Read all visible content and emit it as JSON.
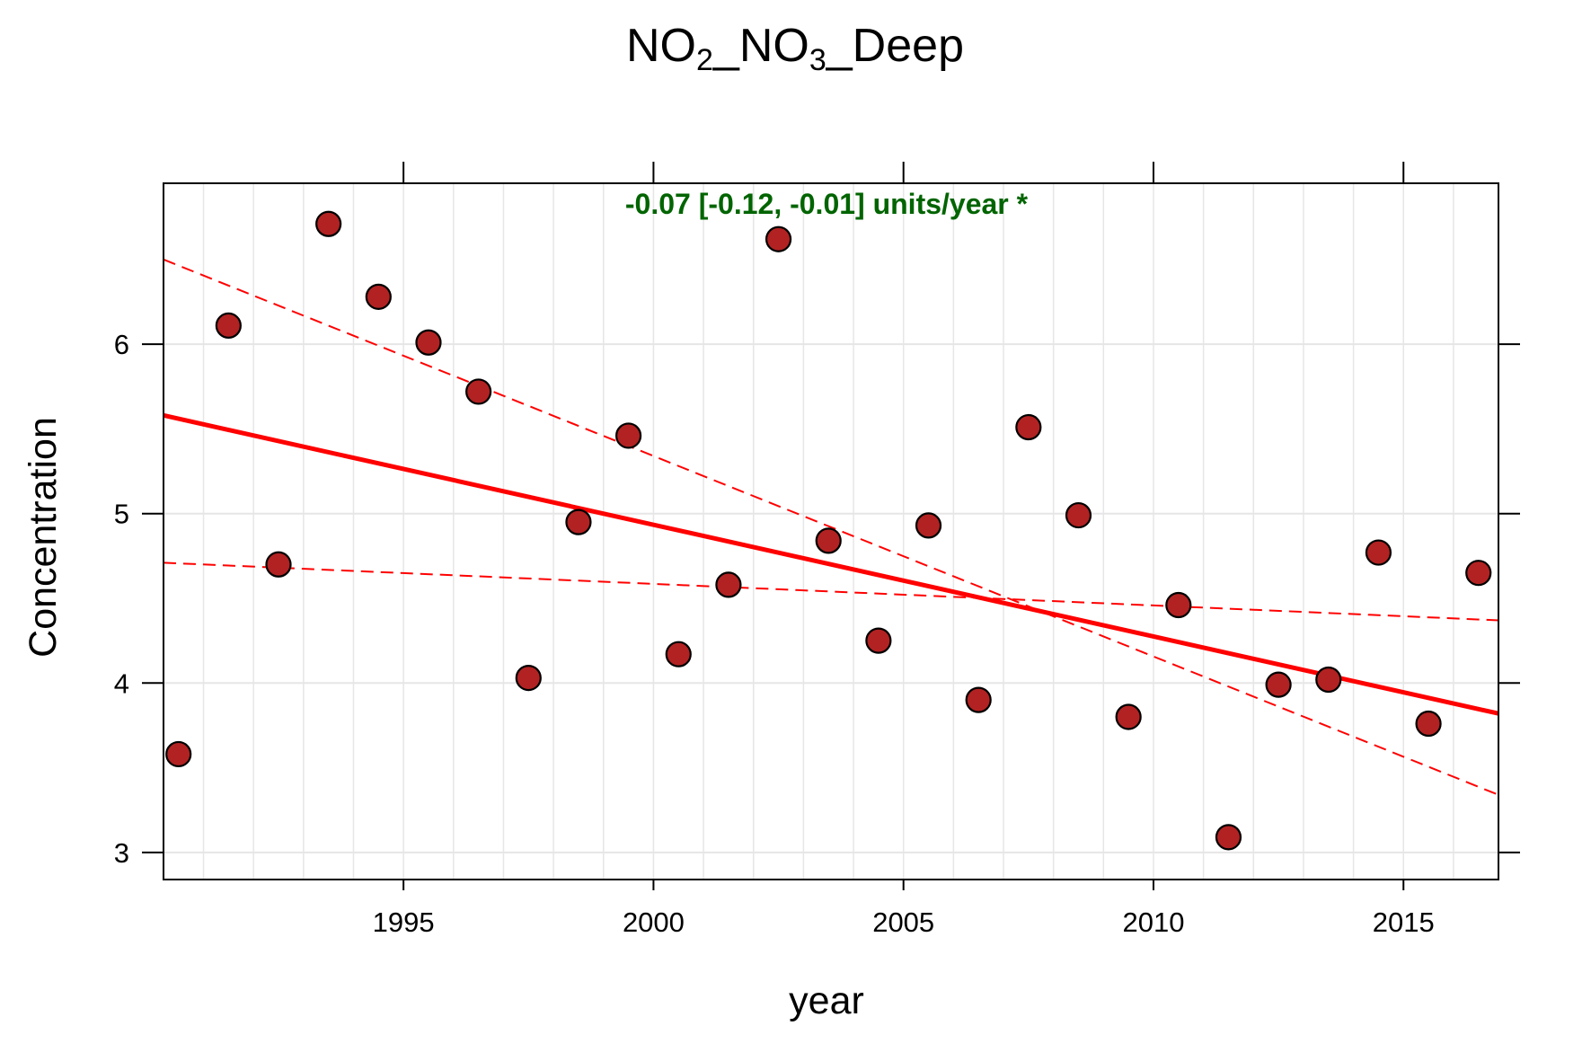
{
  "chart_data": {
    "type": "scatter",
    "title_parts": {
      "a": "NO",
      "a_sub": "2",
      "b": "_NO",
      "b_sub": "3",
      "c": "_Deep"
    },
    "xlabel": "year",
    "ylabel": "Concentration",
    "xlim": [
      1990.2,
      2016.9
    ],
    "ylim": [
      2.84,
      6.95
    ],
    "x_ticks": [
      1995,
      2000,
      2005,
      2010,
      2015
    ],
    "x_tick_labels": [
      "1995",
      "2000",
      "2005",
      "2010",
      "2015"
    ],
    "y_ticks": [
      3,
      4,
      5,
      6
    ],
    "y_tick_labels": [
      "3",
      "4",
      "5",
      "6"
    ],
    "grid": true,
    "annotation": "-0.07 [-0.12, -0.01] units/year *",
    "colors": {
      "points": "#b22222",
      "point_outline": "#000000",
      "trend": "#ff0000",
      "annotation": "#006400",
      "grid": "#e6e6e6"
    },
    "points": {
      "x": [
        1990.5,
        1991.5,
        1992.5,
        1993.5,
        1994.5,
        1995.5,
        1996.5,
        1997.5,
        1998.5,
        1999.5,
        2000.5,
        2001.5,
        2002.5,
        2003.5,
        2004.5,
        2005.5,
        2006.5,
        2007.5,
        2008.5,
        2009.5,
        2010.5,
        2011.5,
        2012.5,
        2013.5,
        2014.5,
        2015.5,
        2016.5
      ],
      "y": [
        3.58,
        6.11,
        4.7,
        6.71,
        6.28,
        6.01,
        5.72,
        4.03,
        4.95,
        5.46,
        4.17,
        4.58,
        6.62,
        4.84,
        4.25,
        4.93,
        3.9,
        5.51,
        4.99,
        3.8,
        4.46,
        3.09,
        3.99,
        4.02,
        4.77,
        3.76,
        4.65
      ]
    },
    "trend": {
      "x": [
        1990.2,
        2016.9
      ],
      "y": [
        5.58,
        3.82
      ]
    },
    "ci_upper": {
      "x": [
        1990.2,
        2016.9
      ],
      "y": [
        6.5,
        3.34
      ]
    },
    "ci_lower": {
      "x": [
        1990.2,
        2016.9
      ],
      "y": [
        4.71,
        4.37
      ]
    }
  }
}
